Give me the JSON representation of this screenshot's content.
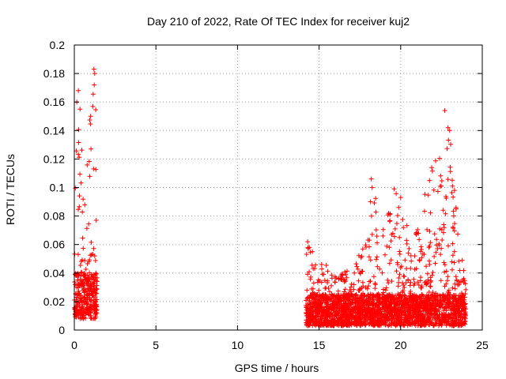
{
  "chart_data": {
    "type": "scatter",
    "title": "Day 210 of 2022, Rate Of TEC Index for receiver kuj2",
    "xlabel": "GPS time / hours",
    "ylabel": "ROTI / TECUs",
    "xlim": [
      0,
      25
    ],
    "ylim": [
      0,
      0.2
    ],
    "xticks": [
      0,
      5,
      10,
      15,
      20,
      25
    ],
    "xtick_labels": [
      "0",
      "5",
      "10",
      "15",
      "20",
      "25"
    ],
    "yticks": [
      0,
      0.02,
      0.04,
      0.06,
      0.08,
      0.1,
      0.12,
      0.14,
      0.16,
      0.18,
      0.2
    ],
    "ytick_labels": [
      "0",
      "0.02",
      "0.04",
      "0.06",
      "0.08",
      "0.1",
      "0.12",
      "0.14",
      "0.16",
      "0.18",
      "0.2"
    ],
    "grid": true,
    "marker": "plus",
    "marker_color": "#ff0000",
    "series": [
      {
        "name": "ROTI",
        "segments": [
          {
            "x_start": 0.0,
            "x_end": 1.4,
            "y_base": 0.008,
            "y_typical": 0.04,
            "envelope": [
              [
                0.0,
                0.1
              ],
              [
                0.15,
                0.16
              ],
              [
                0.3,
                0.17
              ],
              [
                0.5,
                0.12
              ],
              [
                0.7,
                0.09
              ],
              [
                0.9,
                0.15
              ],
              [
                1.1,
                0.16
              ],
              [
                1.3,
                0.18
              ],
              [
                1.4,
                0.06
              ]
            ]
          },
          {
            "x_start": 14.2,
            "x_end": 24.0,
            "y_base": 0.003,
            "y_typical": 0.025,
            "envelope": [
              [
                14.2,
                0.062
              ],
              [
                15.0,
                0.05
              ],
              [
                16.0,
                0.04
              ],
              [
                17.0,
                0.045
              ],
              [
                18.0,
                0.065
              ],
              [
                18.2,
                0.106
              ],
              [
                19.0,
                0.07
              ],
              [
                19.5,
                0.099
              ],
              [
                20.0,
                0.094
              ],
              [
                20.5,
                0.08
              ],
              [
                21.0,
                0.07
              ],
              [
                21.5,
                0.1
              ],
              [
                22.0,
                0.115
              ],
              [
                22.5,
                0.13
              ],
              [
                22.7,
                0.154
              ],
              [
                23.0,
                0.145
              ],
              [
                23.3,
                0.1
              ],
              [
                23.6,
                0.06
              ],
              [
                24.0,
                0.04
              ]
            ]
          }
        ],
        "highlights": [
          {
            "x": 0.15,
            "y": 0.16
          },
          {
            "x": 0.25,
            "y": 0.168
          },
          {
            "x": 0.35,
            "y": 0.155
          },
          {
            "x": 1.2,
            "y": 0.183
          },
          {
            "x": 1.25,
            "y": 0.18
          },
          {
            "x": 1.22,
            "y": 0.172
          },
          {
            "x": 1.0,
            "y": 0.15
          },
          {
            "x": 14.3,
            "y": 0.062
          },
          {
            "x": 14.4,
            "y": 0.058
          },
          {
            "x": 18.2,
            "y": 0.106
          },
          {
            "x": 18.25,
            "y": 0.1
          },
          {
            "x": 18.15,
            "y": 0.09
          },
          {
            "x": 19.6,
            "y": 0.099
          },
          {
            "x": 20.0,
            "y": 0.093
          },
          {
            "x": 21.9,
            "y": 0.114
          },
          {
            "x": 22.7,
            "y": 0.154
          },
          {
            "x": 22.9,
            "y": 0.142
          },
          {
            "x": 23.0,
            "y": 0.14
          },
          {
            "x": 23.3,
            "y": 0.098
          },
          {
            "x": 23.4,
            "y": 0.085
          }
        ]
      }
    ]
  }
}
